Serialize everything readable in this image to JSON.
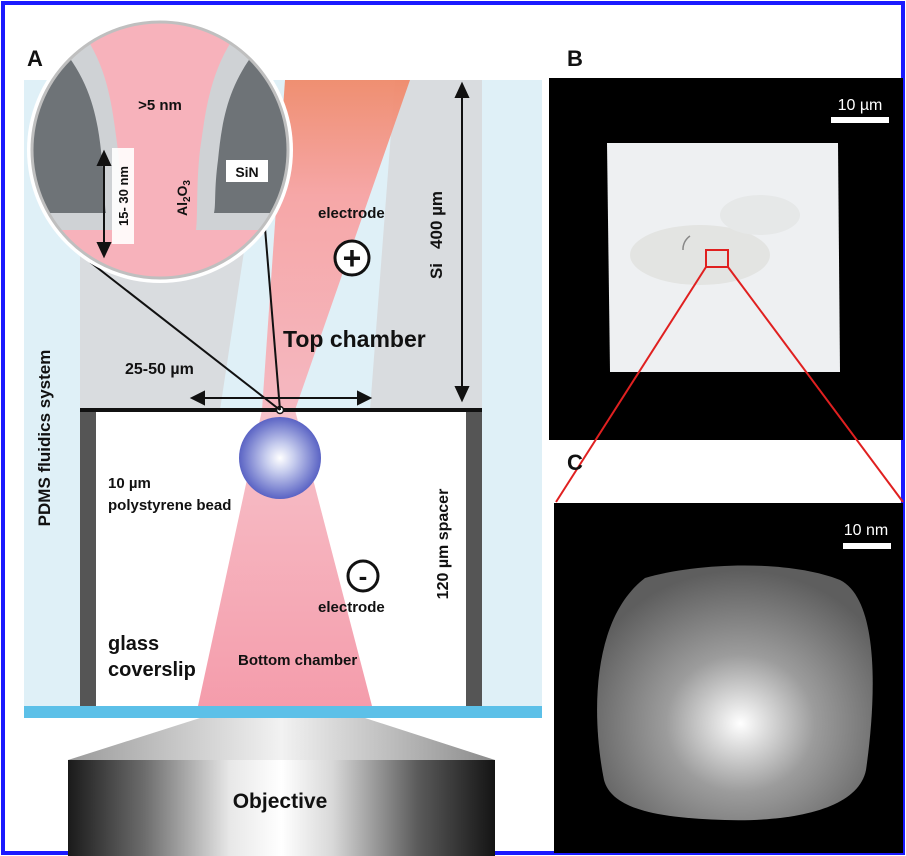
{
  "panels": {
    "a": {
      "letter": "A",
      "inset": {
        "gap": ">5 nm",
        "thickness": "15- 30 nm",
        "al2o3": "Al",
        "al2o3_sub2": "2",
        "al2o3_o": "O",
        "al2o3_sub3": "3",
        "sin": "SiN"
      },
      "electrode_top": "electrode",
      "plus_symbol": "+",
      "si_label": "Si",
      "si_height": "400  µm",
      "top_chamber": "Top chamber",
      "pore_width": "25-50 µm",
      "pdms": "PDMS fluidics system",
      "bead_size": "10 µm",
      "bead_name": "polystyrene bead",
      "spacer": "120  µm spacer",
      "minus_symbol": "-",
      "electrode_bottom": "electrode",
      "glass_line1": "glass",
      "glass_line2": "coverslip",
      "bottom_chamber": "Bottom chamber",
      "objective": "Objective"
    },
    "b": {
      "letter": "B",
      "scale": "10 µm"
    },
    "c": {
      "letter": "C",
      "scale": "10 nm"
    }
  },
  "colors": {
    "frame": "#1a1aff",
    "beam": "#f4a0ac",
    "si": "#d9dcdf",
    "pdms": "#dff0f7",
    "coverslip": "#5cc0e8",
    "zoom_lines": "#e02020",
    "panel_bg": "#000000"
  }
}
